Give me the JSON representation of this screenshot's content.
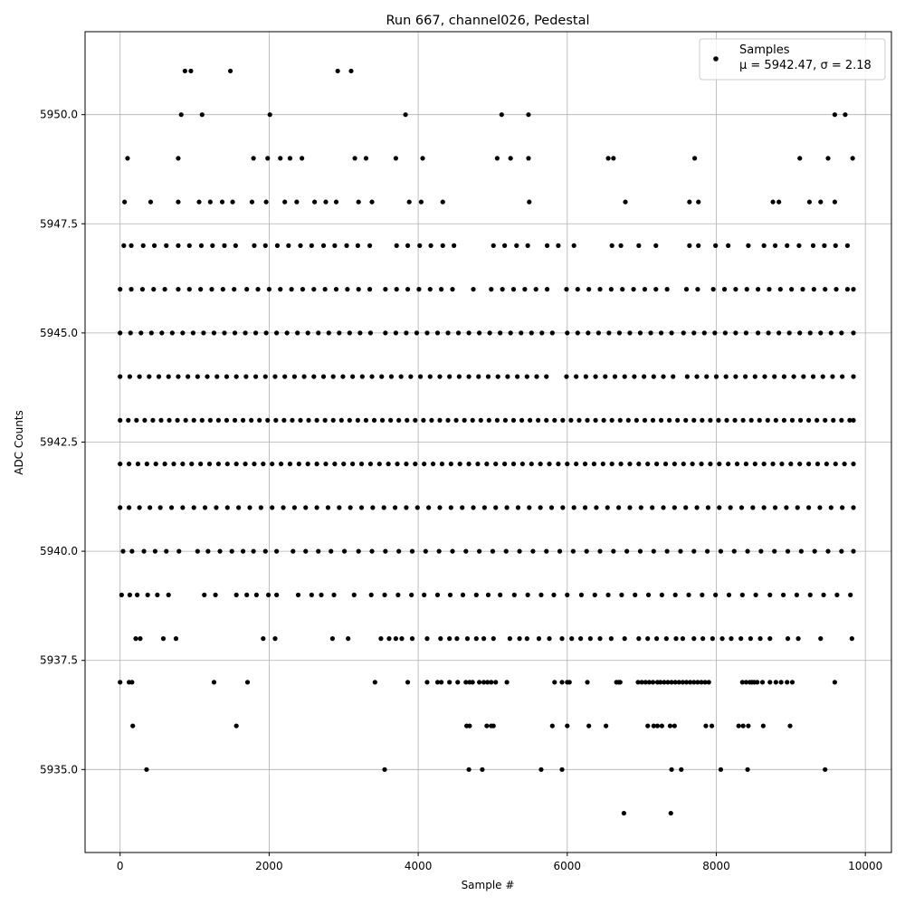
{
  "chart_data": {
    "type": "scatter",
    "title": "Run 667, channel026, Pedestal",
    "xlabel": "Sample #",
    "ylabel": "ADC Counts",
    "xlim": [
      -470,
      10350
    ],
    "ylim": [
      5933.1,
      5951.9
    ],
    "x_ticks": [
      0,
      2000,
      4000,
      6000,
      8000,
      10000
    ],
    "y_ticks": [
      5935.0,
      5937.5,
      5940.0,
      5942.5,
      5945.0,
      5947.5,
      5950.0
    ],
    "x_tick_labels": [
      "0",
      "2000",
      "4000",
      "6000",
      "8000",
      "10000"
    ],
    "y_tick_labels": [
      "5935.0",
      "5937.5",
      "5940.0",
      "5942.5",
      "5945.0",
      "5947.5",
      "5950.0"
    ],
    "grid": true,
    "legend": {
      "placement": "top-right",
      "label_line1": "Samples",
      "label_line2": "μ = 5942.47, σ = 2.18"
    },
    "marker_color": "#000000",
    "series": [
      {
        "name": "Samples",
        "x_range": [
          0,
          9840
        ],
        "bands": [
          {
            "y": 5934,
            "x": [
              6760,
              7390
            ]
          },
          {
            "y": 5935,
            "x": [
              355,
              3550,
              4680,
              4860,
              5650,
              5930,
              7400,
              7530,
              8060,
              8420,
              9460
            ]
          },
          {
            "y": 5936,
            "x": [
              170,
              1560,
              4650,
              4690,
              4920,
              4980,
              5010,
              5800,
              6000,
              6290,
              6520,
              7080,
              7160,
              7210,
              7270,
              7380,
              7440,
              7860,
              7940,
              8300,
              8360,
              8430,
              8630,
              8990
            ]
          },
          {
            "y": 5937,
            "x": [
              0,
              120,
              160,
              1260,
              1710,
              3420,
              3860,
              4120,
              4260,
              4310,
              4420,
              4530,
              4640,
              4690,
              4730,
              4820,
              4880,
              4930,
              4980,
              5040,
              5190,
              5830,
              5930,
              6000,
              6030,
              6270,
              6660,
              6690,
              6710,
              6950,
              7000,
              7050,
              7100,
              7150,
              7210,
              7250,
              7300,
              7350,
              7400,
              7450,
              7500,
              7550,
              7600,
              7650,
              7700,
              7750,
              7800,
              7850,
              7900,
              8350,
              8400,
              8450,
              8480,
              8510,
              8550,
              8620,
              8720,
              8800,
              8870,
              8950,
              9020,
              9590
            ]
          },
          {
            "y": 5938,
            "x": [
              210,
              270,
              580,
              750,
              1920,
              2080,
              2850,
              3060,
              3500,
              3610,
              3700,
              3780,
              3920,
              4120,
              4300,
              4420,
              4520,
              4660,
              4780,
              4880,
              5010,
              5230,
              5360,
              5460,
              5620,
              5760,
              5930,
              6060,
              6180,
              6310,
              6440,
              6590,
              6770,
              6960,
              7080,
              7200,
              7330,
              7460,
              7550,
              7700,
              7820,
              7950,
              8080,
              8200,
              8330,
              8460,
              8590,
              8720,
              8960,
              9100,
              9400,
              9820
            ]
          },
          {
            "y": 5939,
            "x": [
              20,
              130,
              230,
              370,
              500,
              650,
              1130,
              1280,
              1560,
              1700,
              1830,
              1990,
              2100,
              2390,
              2570,
              2700,
              2870,
              3140,
              3370,
              3550,
              3730,
              3910,
              4080,
              4260,
              4430,
              4600,
              4780,
              4940,
              5100,
              5290,
              5470,
              5650,
              5820,
              6000,
              6190,
              6370,
              6550,
              6730,
              6910,
              7090,
              7270,
              7450,
              7630,
              7810,
              7990,
              8170,
              8350,
              8530,
              8720,
              8900,
              9080,
              9260,
              9440,
              9620,
              9800
            ]
          },
          {
            "y": 5940,
            "x": [
              40,
              160,
              320,
              470,
              620,
              790,
              1040,
              1180,
              1340,
              1500,
              1650,
              1790,
              1950,
              2100,
              2320,
              2490,
              2660,
              2830,
              3010,
              3200,
              3380,
              3560,
              3740,
              3920,
              4100,
              4280,
              4460,
              4640,
              4820,
              5000,
              5180,
              5360,
              5540,
              5720,
              5900,
              6080,
              6260,
              6440,
              6620,
              6800,
              6980,
              7160,
              7340,
              7520,
              7700,
              7880,
              8060,
              8240,
              8420,
              8600,
              8780,
              8960,
              9140,
              9320,
              9500,
              9680,
              9840
            ]
          },
          {
            "y": 5941,
            "x": [
              0,
              120,
              260,
              400,
              540,
              690,
              840,
              990,
              1140,
              1290,
              1440,
              1590,
              1740,
              1890,
              2040,
              2190,
              2340,
              2490,
              2640,
              2790,
              2940,
              3090,
              3240,
              3390,
              3540,
              3690,
              3840,
              3990,
              4140,
              4290,
              4440,
              4590,
              4740,
              4890,
              5040,
              5190,
              5340,
              5490,
              5640,
              5790,
              5940,
              6090,
              6240,
              6390,
              6540,
              6690,
              6840,
              6990,
              7140,
              7290,
              7440,
              7590,
              7740,
              7890,
              8040,
              8190,
              8340,
              8490,
              8640,
              8790,
              8940,
              9090,
              9240,
              9390,
              9540,
              9690,
              9840
            ]
          },
          {
            "y": 5942,
            "x": [
              0,
              120,
              240,
              360,
              480,
              600,
              720,
              840,
              960,
              1080,
              1200,
              1320,
              1440,
              1560,
              1680,
              1800,
              1920,
              2040,
              2160,
              2280,
              2400,
              2520,
              2640,
              2760,
              2880,
              3000,
              3120,
              3240,
              3360,
              3480,
              3600,
              3720,
              3840,
              3960,
              4080,
              4200,
              4320,
              4440,
              4560,
              4680,
              4800,
              4920,
              5040,
              5160,
              5280,
              5400,
              5520,
              5640,
              5760,
              5880,
              6000,
              6120,
              6240,
              6360,
              6480,
              6600,
              6720,
              6840,
              6960,
              7080,
              7200,
              7320,
              7440,
              7560,
              7680,
              7800,
              7920,
              8040,
              8160,
              8280,
              8400,
              8520,
              8640,
              8760,
              8880,
              9000,
              9120,
              9240,
              9360,
              9480,
              9600,
              9720,
              9840
            ]
          },
          {
            "y": 5943,
            "x": [
              0,
              110,
              220,
              330,
              440,
              550,
              660,
              770,
              880,
              990,
              1100,
              1210,
              1320,
              1430,
              1540,
              1650,
              1760,
              1870,
              1980,
              2090,
              2200,
              2310,
              2420,
              2530,
              2640,
              2750,
              2860,
              2970,
              3080,
              3190,
              3300,
              3410,
              3520,
              3630,
              3740,
              3850,
              3960,
              4070,
              4180,
              4290,
              4400,
              4510,
              4620,
              4730,
              4840,
              4950,
              5060,
              5170,
              5280,
              5390,
              5500,
              5610,
              5720,
              5830,
              5940,
              6050,
              6160,
              6270,
              6380,
              6490,
              6600,
              6710,
              6820,
              6930,
              7040,
              7150,
              7260,
              7370,
              7480,
              7590,
              7700,
              7810,
              7920,
              8030,
              8140,
              8250,
              8360,
              8470,
              8580,
              8690,
              8800,
              8910,
              9020,
              9130,
              9240,
              9350,
              9460,
              9570,
              9680,
              9790,
              9840
            ]
          },
          {
            "y": 5944,
            "x": [
              0,
              130,
              260,
              390,
              520,
              650,
              780,
              910,
              1040,
              1170,
              1300,
              1430,
              1560,
              1690,
              1820,
              1950,
              2080,
              2210,
              2340,
              2470,
              2600,
              2730,
              2860,
              2990,
              3120,
              3250,
              3380,
              3510,
              3640,
              3770,
              3900,
              4030,
              4160,
              4290,
              4420,
              4550,
              4680,
              4810,
              4940,
              5070,
              5200,
              5330,
              5460,
              5590,
              5720,
              5990,
              6120,
              6250,
              6380,
              6510,
              6640,
              6770,
              6900,
              7030,
              7160,
              7290,
              7420,
              7610,
              7740,
              7870,
              8000,
              8130,
              8260,
              8390,
              8520,
              8650,
              8780,
              8910,
              9040,
              9170,
              9300,
              9430,
              9560,
              9690,
              9840
            ]
          },
          {
            "y": 5945,
            "x": [
              0,
              140,
              280,
              420,
              560,
              700,
              840,
              980,
              1120,
              1260,
              1400,
              1540,
              1680,
              1820,
              1960,
              2100,
              2240,
              2380,
              2520,
              2660,
              2800,
              2940,
              3080,
              3220,
              3360,
              3560,
              3700,
              3840,
              3980,
              4120,
              4260,
              4400,
              4540,
              4680,
              4820,
              4960,
              5100,
              5240,
              5380,
              5520,
              5660,
              5800,
              6000,
              6140,
              6280,
              6420,
              6560,
              6700,
              6840,
              6980,
              7120,
              7260,
              7400,
              7560,
              7700,
              7840,
              7980,
              8120,
              8260,
              8400,
              8560,
              8700,
              8840,
              8980,
              9120,
              9260,
              9400,
              9540,
              9680,
              9840
            ]
          },
          {
            "y": 5946,
            "x": [
              0,
              150,
              300,
              450,
              600,
              780,
              930,
              1080,
              1230,
              1380,
              1530,
              1700,
              1850,
              2000,
              2150,
              2300,
              2450,
              2600,
              2750,
              2900,
              3050,
              3200,
              3350,
              3560,
              3710,
              3860,
              4010,
              4160,
              4310,
              4460,
              4740,
              4980,
              5130,
              5280,
              5430,
              5580,
              5730,
              5990,
              6140,
              6290,
              6440,
              6590,
              6740,
              6890,
              7040,
              7190,
              7340,
              7600,
              7750,
              7960,
              8110,
              8260,
              8410,
              8560,
              8710,
              8860,
              9010,
              9160,
              9310,
              9460,
              9610,
              9760,
              9840
            ]
          },
          {
            "y": 5947,
            "x": [
              50,
              150,
              310,
              460,
              620,
              780,
              930,
              1090,
              1240,
              1400,
              1550,
              1800,
              1950,
              2110,
              2260,
              2420,
              2570,
              2730,
              2880,
              3040,
              3190,
              3350,
              3710,
              3860,
              4020,
              4170,
              4330,
              4480,
              5010,
              5160,
              5320,
              5470,
              5730,
              5880,
              6090,
              6600,
              6720,
              6960,
              7190,
              7640,
              7760,
              7990,
              8160,
              8430,
              8640,
              8790,
              8950,
              9110,
              9300,
              9450,
              9600,
              9760
            ]
          },
          {
            "y": 5948,
            "x": [
              60,
              410,
              780,
              1060,
              1210,
              1370,
              1510,
              1770,
              1960,
              2210,
              2370,
              2610,
              2760,
              2900,
              3200,
              3380,
              3880,
              4040,
              4330,
              5490,
              6780,
              7640,
              7760,
              8760,
              8840,
              9250,
              9400,
              9590
            ]
          },
          {
            "y": 5949,
            "x": [
              100,
              780,
              1790,
              1980,
              2150,
              2280,
              2440,
              3150,
              3300,
              3700,
              4060,
              5060,
              5240,
              5480,
              6550,
              6620,
              7710,
              9120,
              9500,
              9830
            ]
          },
          {
            "y": 5950,
            "x": [
              820,
              1100,
              2010,
              3830,
              5120,
              5480,
              9590,
              9730
            ]
          },
          {
            "y": 5951,
            "x": [
              870,
              950,
              1480,
              2920,
              3100
            ]
          }
        ]
      }
    ]
  }
}
